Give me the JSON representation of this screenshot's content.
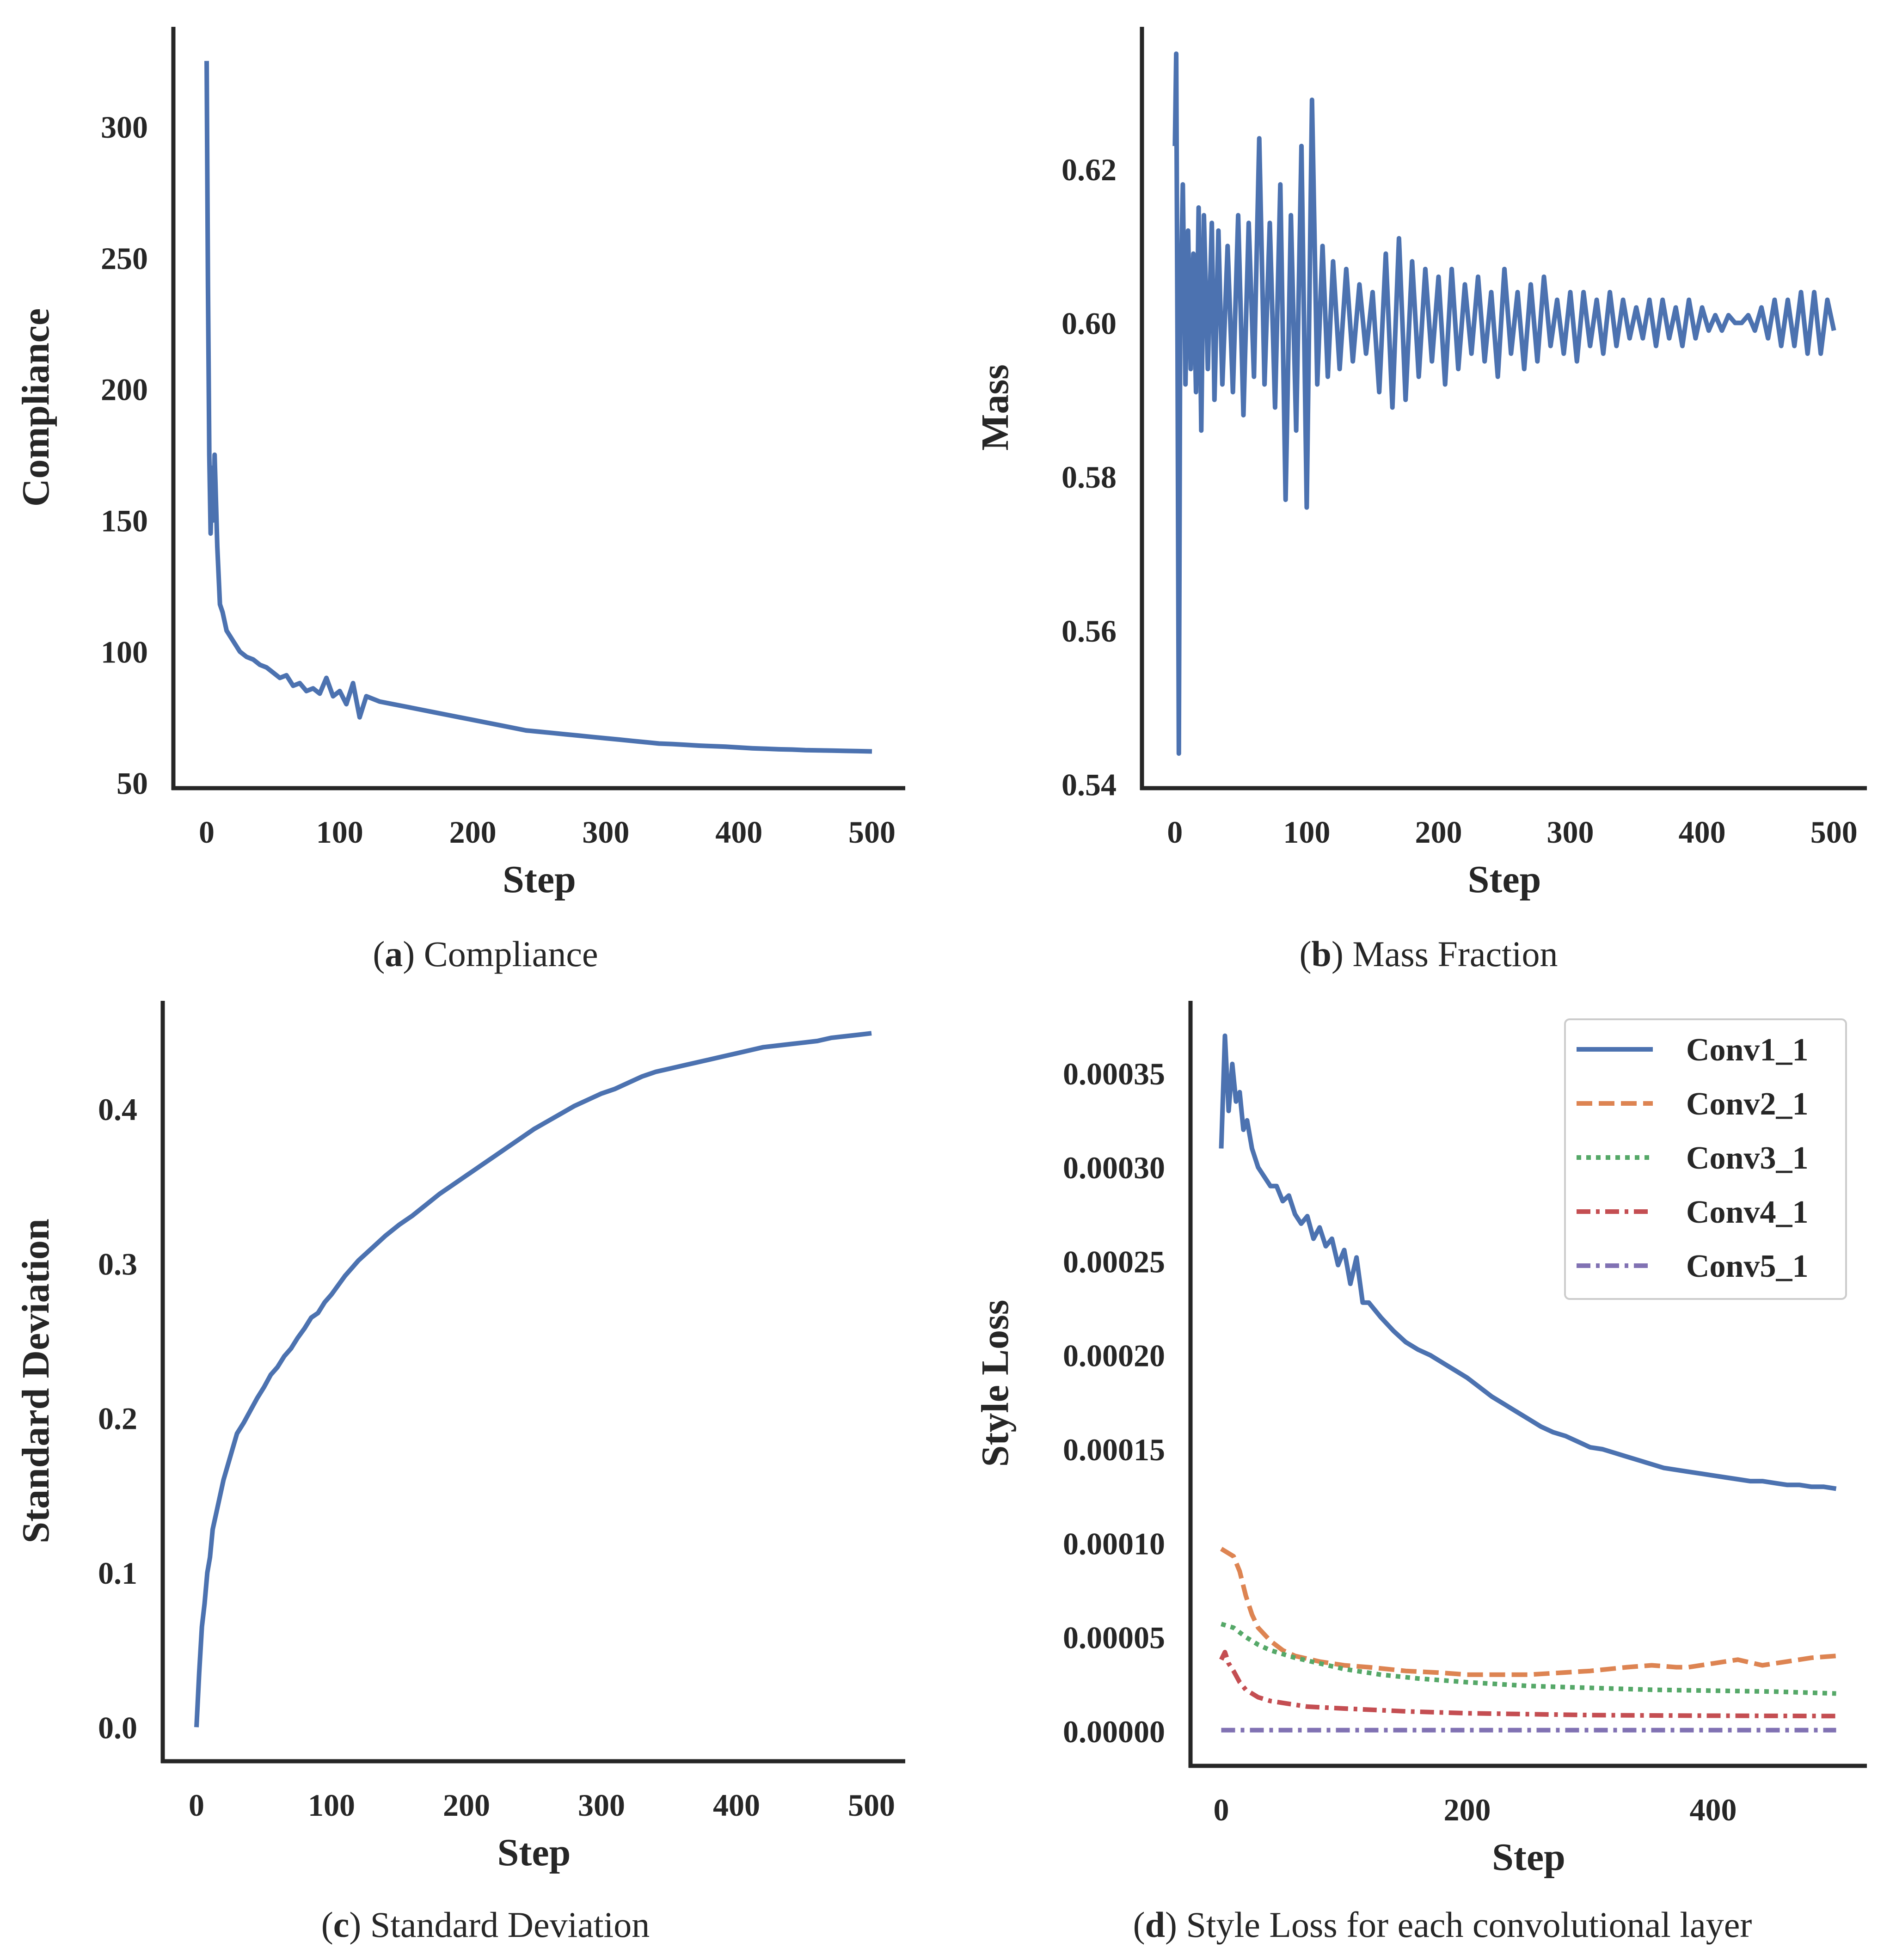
{
  "chart_data": [
    {
      "id": "a",
      "type": "line",
      "caption_letter": "a",
      "caption_text": "Compliance",
      "xlabel": "Step",
      "ylabel": "Compliance",
      "xlim": [
        -25,
        525
      ],
      "ylim": [
        48,
        338
      ],
      "xticks": [
        0,
        100,
        200,
        300,
        400,
        500
      ],
      "yticks": [
        50,
        100,
        150,
        200,
        250,
        300
      ],
      "ytick_labels": [
        "50",
        "100",
        "150",
        "200",
        "250",
        "300"
      ],
      "series": [
        {
          "name": "Compliance",
          "color": "#4c72b0",
          "style": "solid",
          "x": [
            0,
            1,
            2,
            3,
            4,
            5,
            6,
            8,
            10,
            12,
            15,
            20,
            25,
            30,
            35,
            40,
            45,
            50,
            55,
            60,
            65,
            70,
            75,
            80,
            85,
            90,
            95,
            100,
            105,
            110,
            115,
            120,
            130,
            140,
            150,
            160,
            170,
            180,
            190,
            200,
            210,
            220,
            230,
            240,
            250,
            260,
            270,
            280,
            290,
            300,
            310,
            320,
            330,
            340,
            350,
            360,
            370,
            380,
            390,
            400,
            410,
            420,
            430,
            440,
            450,
            460,
            470,
            480,
            490,
            500
          ],
          "y": [
            325,
            240,
            175,
            145,
            170,
            150,
            175,
            140,
            118,
            115,
            108,
            104,
            100,
            98,
            97,
            95,
            94,
            92,
            90,
            91,
            87,
            88,
            85,
            86,
            84,
            90,
            83,
            85,
            80,
            88,
            75,
            83,
            81,
            80,
            79,
            78,
            77,
            76,
            75,
            74,
            73,
            72,
            71,
            70,
            69.5,
            69,
            68.5,
            68,
            67.5,
            67,
            66.5,
            66,
            65.5,
            65,
            64.8,
            64.5,
            64.2,
            64,
            63.8,
            63.5,
            63.2,
            63,
            62.8,
            62.7,
            62.5,
            62.4,
            62.3,
            62.2,
            62.1,
            62
          ]
        }
      ]
    },
    {
      "id": "b",
      "type": "line",
      "caption_letter": "b",
      "caption_text": "Mass Fraction",
      "xlabel": "Step",
      "ylabel": "Mass",
      "xlim": [
        -25,
        525
      ],
      "ylim": [
        0.5395,
        0.6385
      ],
      "xticks": [
        0,
        100,
        200,
        300,
        400,
        500
      ],
      "yticks": [
        0.54,
        0.56,
        0.58,
        0.6,
        0.62
      ],
      "ytick_labels": [
        "0.54",
        "0.56",
        "0.58",
        "0.60",
        "0.62"
      ],
      "series": [
        {
          "name": "Mass",
          "color": "#4c72b0",
          "style": "solid",
          "x": [
            0,
            1,
            2,
            3,
            4,
            6,
            8,
            10,
            12,
            14,
            16,
            18,
            20,
            22,
            25,
            28,
            30,
            33,
            36,
            40,
            44,
            48,
            52,
            56,
            60,
            64,
            68,
            72,
            76,
            80,
            84,
            88,
            92,
            96,
            100,
            104,
            108,
            112,
            116,
            120,
            125,
            130,
            135,
            140,
            145,
            150,
            155,
            160,
            165,
            170,
            175,
            180,
            185,
            190,
            195,
            200,
            205,
            210,
            215,
            220,
            225,
            230,
            235,
            240,
            245,
            250,
            255,
            260,
            265,
            270,
            275,
            280,
            285,
            290,
            295,
            300,
            305,
            310,
            315,
            320,
            325,
            330,
            335,
            340,
            345,
            350,
            355,
            360,
            365,
            370,
            375,
            380,
            385,
            390,
            395,
            400,
            405,
            410,
            415,
            420,
            425,
            430,
            435,
            440,
            445,
            450,
            455,
            460,
            465,
            470,
            475,
            480,
            485,
            490,
            495,
            500
          ],
          "y": [
            0.623,
            0.635,
            0.596,
            0.544,
            0.6,
            0.618,
            0.592,
            0.612,
            0.594,
            0.609,
            0.591,
            0.615,
            0.586,
            0.614,
            0.594,
            0.613,
            0.59,
            0.612,
            0.592,
            0.61,
            0.591,
            0.614,
            0.588,
            0.613,
            0.593,
            0.624,
            0.592,
            0.613,
            0.589,
            0.618,
            0.577,
            0.614,
            0.586,
            0.623,
            0.576,
            0.629,
            0.592,
            0.61,
            0.593,
            0.608,
            0.594,
            0.607,
            0.595,
            0.605,
            0.596,
            0.604,
            0.591,
            0.609,
            0.589,
            0.611,
            0.59,
            0.608,
            0.593,
            0.607,
            0.595,
            0.606,
            0.592,
            0.607,
            0.594,
            0.605,
            0.596,
            0.606,
            0.595,
            0.604,
            0.593,
            0.607,
            0.596,
            0.604,
            0.594,
            0.605,
            0.595,
            0.606,
            0.597,
            0.603,
            0.596,
            0.604,
            0.595,
            0.604,
            0.597,
            0.603,
            0.596,
            0.604,
            0.597,
            0.603,
            0.598,
            0.602,
            0.598,
            0.603,
            0.597,
            0.603,
            0.598,
            0.602,
            0.597,
            0.603,
            0.598,
            0.602,
            0.599,
            0.601,
            0.599,
            0.601,
            0.6,
            0.6,
            0.601,
            0.599,
            0.602,
            0.598,
            0.603,
            0.597,
            0.603,
            0.597,
            0.604,
            0.596,
            0.604,
            0.596,
            0.603,
            0.599
          ]
        }
      ]
    },
    {
      "id": "c",
      "type": "line",
      "caption_letter": "c",
      "caption_text": "Standard Deviation",
      "xlabel": "Step",
      "ylabel": "Standard Deviation",
      "xlim": [
        -25,
        525
      ],
      "ylim": [
        -0.022,
        0.47
      ],
      "xticks": [
        0,
        100,
        200,
        300,
        400,
        500
      ],
      "yticks": [
        0.0,
        0.1,
        0.2,
        0.3,
        0.4
      ],
      "ytick_labels": [
        "0.0",
        "0.1",
        "0.2",
        "0.3",
        "0.4"
      ],
      "series": [
        {
          "name": "Standard Deviation",
          "color": "#4c72b0",
          "style": "solid",
          "x": [
            0,
            2,
            4,
            6,
            8,
            10,
            12,
            15,
            18,
            20,
            25,
            30,
            35,
            40,
            45,
            50,
            55,
            60,
            65,
            70,
            75,
            80,
            85,
            90,
            95,
            100,
            105,
            110,
            115,
            120,
            130,
            140,
            150,
            160,
            170,
            180,
            190,
            200,
            210,
            220,
            230,
            240,
            250,
            260,
            270,
            280,
            290,
            300,
            310,
            320,
            330,
            340,
            350,
            360,
            370,
            380,
            390,
            400,
            410,
            420,
            430,
            440,
            450,
            460,
            470,
            480,
            490,
            500
          ],
          "y": [
            0.0,
            0.035,
            0.065,
            0.08,
            0.1,
            0.11,
            0.128,
            0.14,
            0.152,
            0.16,
            0.175,
            0.19,
            0.197,
            0.205,
            0.213,
            0.22,
            0.228,
            0.233,
            0.24,
            0.245,
            0.252,
            0.258,
            0.265,
            0.268,
            0.275,
            0.28,
            0.286,
            0.292,
            0.297,
            0.302,
            0.31,
            0.318,
            0.325,
            0.331,
            0.338,
            0.345,
            0.351,
            0.357,
            0.363,
            0.369,
            0.375,
            0.381,
            0.387,
            0.392,
            0.397,
            0.402,
            0.406,
            0.41,
            0.413,
            0.417,
            0.421,
            0.424,
            0.426,
            0.428,
            0.43,
            0.432,
            0.434,
            0.436,
            0.438,
            0.44,
            0.441,
            0.442,
            0.443,
            0.444,
            0.446,
            0.447,
            0.448,
            0.449
          ]
        }
      ]
    },
    {
      "id": "d",
      "type": "line",
      "caption_letter": "d",
      "caption_text": "Style Loss for each convolutional layer",
      "xlabel": "Step",
      "ylabel": "Style Loss",
      "xlim": [
        -25,
        525
      ],
      "ylim": [
        -1.85e-05,
        0.0003886
      ],
      "xticks": [
        0,
        200,
        400
      ],
      "yticks": [
        0.0,
        5e-05,
        0.0001,
        0.00015,
        0.0002,
        0.00025,
        0.0003,
        0.00035
      ],
      "ytick_labels": [
        "0.00000",
        "0.00005",
        "0.00010",
        "0.00015",
        "0.00020",
        "0.00025",
        "0.00030",
        "0.00035"
      ],
      "legend_location": "top-right",
      "series": [
        {
          "name": "Conv1_1",
          "color": "#4c72b0",
          "style": "solid",
          "x": [
            0,
            3,
            6,
            9,
            12,
            15,
            18,
            21,
            25,
            30,
            35,
            40,
            45,
            50,
            55,
            60,
            65,
            70,
            75,
            80,
            85,
            90,
            95,
            100,
            105,
            110,
            115,
            120,
            130,
            140,
            150,
            160,
            170,
            180,
            190,
            200,
            210,
            220,
            230,
            240,
            250,
            260,
            270,
            280,
            290,
            300,
            310,
            320,
            330,
            340,
            350,
            360,
            370,
            380,
            390,
            400,
            410,
            420,
            430,
            440,
            450,
            460,
            470,
            480,
            490,
            500
          ],
          "y": [
            0.00031,
            0.00037,
            0.00033,
            0.000355,
            0.000335,
            0.00034,
            0.00032,
            0.000325,
            0.00031,
            0.0003,
            0.000295,
            0.00029,
            0.00029,
            0.000282,
            0.000285,
            0.000275,
            0.00027,
            0.000274,
            0.000262,
            0.000268,
            0.000258,
            0.000262,
            0.000248,
            0.000256,
            0.000238,
            0.000252,
            0.000228,
            0.000228,
            0.00022,
            0.000213,
            0.000207,
            0.000203,
            0.0002,
            0.000196,
            0.000192,
            0.000188,
            0.000183,
            0.000178,
            0.000174,
            0.00017,
            0.000166,
            0.000162,
            0.000159,
            0.000157,
            0.000154,
            0.000151,
            0.00015,
            0.000148,
            0.000146,
            0.000144,
            0.000142,
            0.00014,
            0.000139,
            0.000138,
            0.000137,
            0.000136,
            0.000135,
            0.000134,
            0.000133,
            0.000133,
            0.000132,
            0.000131,
            0.000131,
            0.00013,
            0.00013,
            0.000129
          ]
        },
        {
          "name": "Conv2_1",
          "color": "#dd8452",
          "style": "dashed",
          "x": [
            0,
            10,
            15,
            20,
            25,
            30,
            40,
            50,
            60,
            80,
            100,
            120,
            150,
            180,
            200,
            250,
            300,
            330,
            350,
            370,
            380,
            400,
            420,
            440,
            460,
            480,
            500
          ],
          "y": [
            9.7e-05,
            9.3e-05,
            8.5e-05,
            7.2e-05,
            6.2e-05,
            5.5e-05,
            4.8e-05,
            4.3e-05,
            4e-05,
            3.7e-05,
            3.5e-05,
            3.4e-05,
            3.2e-05,
            3.1e-05,
            3e-05,
            3e-05,
            3.2e-05,
            3.4e-05,
            3.5e-05,
            3.4e-05,
            3.4e-05,
            3.6e-05,
            3.8e-05,
            3.5e-05,
            3.7e-05,
            3.9e-05,
            4e-05
          ]
        },
        {
          "name": "Conv3_1",
          "color": "#55a868",
          "style": "dotted",
          "x": [
            0,
            10,
            20,
            30,
            40,
            60,
            80,
            100,
            130,
            160,
            200,
            250,
            300,
            350,
            400,
            450,
            500
          ],
          "y": [
            5.7e-05,
            5.5e-05,
            5e-05,
            4.6e-05,
            4.3e-05,
            3.9e-05,
            3.6e-05,
            3.3e-05,
            3e-05,
            2.8e-05,
            2.6e-05,
            2.4e-05,
            2.3e-05,
            2.2e-05,
            2.15e-05,
            2.1e-05,
            2e-05
          ]
        },
        {
          "name": "Conv4_1",
          "color": "#c44e52",
          "style": "dashdot",
          "x": [
            0,
            3,
            6,
            10,
            15,
            20,
            25,
            30,
            40,
            50,
            70,
            100,
            150,
            200,
            250,
            300,
            350,
            400,
            450,
            500
          ],
          "y": [
            3.8e-05,
            4.2e-05,
            3.6e-05,
            3.2e-05,
            2.6e-05,
            2.2e-05,
            2e-05,
            1.8e-05,
            1.6e-05,
            1.5e-05,
            1.3e-05,
            1.2e-05,
            1.05e-05,
            9.5e-06,
            9e-06,
            8.5e-06,
            8.3e-06,
            8.2e-06,
            8.1e-06,
            8e-06
          ]
        },
        {
          "name": "Conv5_1",
          "color": "#8172b3",
          "style": "dashdot",
          "x": [
            0,
            500
          ],
          "y": [
            5e-07,
            5e-07
          ]
        }
      ]
    }
  ]
}
